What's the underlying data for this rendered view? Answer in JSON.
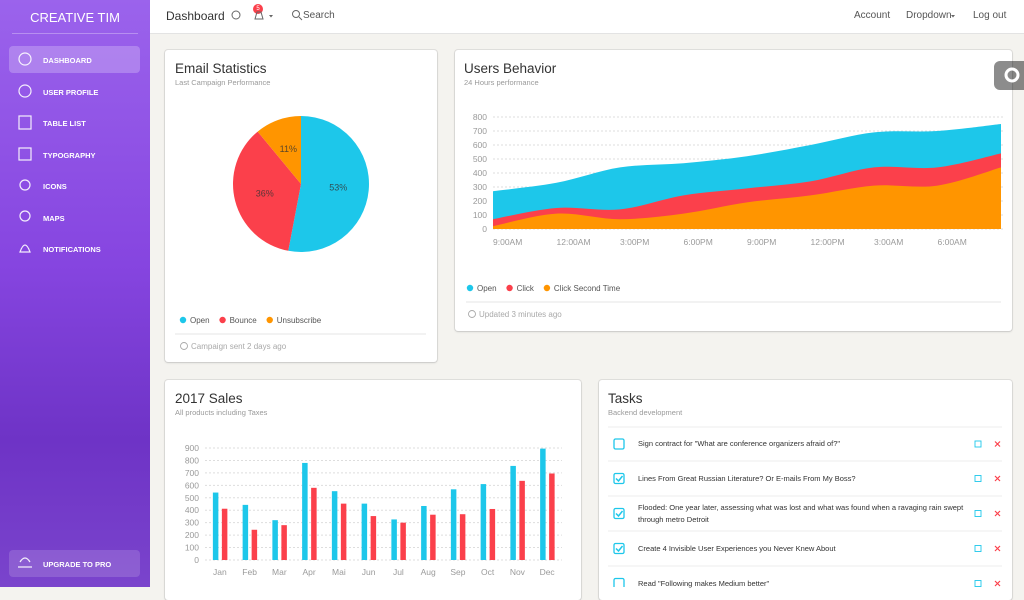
{
  "sidebar": {
    "brand": "CREATIVE TIM",
    "items": [
      "DASHBOARD",
      "USER PROFILE",
      "TABLE LIST",
      "TYPOGRAPHY",
      "ICONS",
      "MAPS",
      "NOTIFICATIONS"
    ],
    "upgrade": "UPGRADE TO PRO"
  },
  "navbar": {
    "title": "Dashboard",
    "badge": "5",
    "search": "Search",
    "links": [
      "Account",
      "Dropdown",
      "Log out"
    ]
  },
  "chart_data": [
    {
      "type": "pie",
      "title": "Email Statistics",
      "subtitle": "Last Campaign Performance",
      "categories": [
        "Open",
        "Bounce",
        "Unsubscribe"
      ],
      "values": [
        53,
        36,
        11
      ],
      "value_labels": [
        "53%",
        "36%",
        "11%"
      ],
      "colors": [
        "#1DC7EA",
        "#FB404B",
        "#FF9500"
      ],
      "footer": "Campaign sent 2 days ago"
    },
    {
      "type": "area",
      "title": "Users Behavior",
      "subtitle": "24 Hours performance",
      "categories": [
        "9:00AM",
        "12:00AM",
        "3:00PM",
        "6:00PM",
        "9:00PM",
        "12:00PM",
        "3:00AM",
        "6:00AM",
        null
      ],
      "series": [
        {
          "name": "Open",
          "color": "#1DC7EA",
          "values": [
            270,
            330,
            440,
            470,
            520,
            600,
            690,
            700,
            750
          ]
        },
        {
          "name": "Click",
          "color": "#FB404B",
          "values": [
            70,
            150,
            140,
            240,
            290,
            340,
            440,
            440,
            540
          ]
        },
        {
          "name": "Click Second Time",
          "color": "#FF9500",
          "values": [
            20,
            110,
            70,
            110,
            190,
            240,
            310,
            310,
            440
          ]
        }
      ],
      "ylim": [
        0,
        800
      ],
      "yticks": [
        0,
        100,
        200,
        300,
        400,
        500,
        600,
        700,
        800
      ],
      "grid": true,
      "footer": "Updated 3 minutes ago"
    },
    {
      "type": "bar",
      "title": "2017 Sales",
      "subtitle": "All products including Taxes",
      "categories": [
        "Jan",
        "Feb",
        "Mar",
        "Apr",
        "Mai",
        "Jun",
        "Jul",
        "Aug",
        "Sep",
        "Oct",
        "Nov",
        "Dec"
      ],
      "series": [
        {
          "color": "#1DC7EA",
          "values": [
            542,
            443,
            320,
            780,
            553,
            453,
            326,
            434,
            568,
            610,
            756,
            895
          ]
        },
        {
          "color": "#FB404B",
          "values": [
            412,
            243,
            280,
            580,
            453,
            353,
            300,
            364,
            368,
            410,
            636,
            695
          ]
        }
      ],
      "ylim": [
        0,
        900
      ],
      "yticks": [
        0,
        100,
        200,
        300,
        400,
        500,
        600,
        700,
        800,
        900
      ],
      "grid": true
    }
  ],
  "tasks": {
    "title": "Tasks",
    "subtitle": "Backend development",
    "items": [
      {
        "text": "Sign contract for \"What are conference organizers afraid of?\"",
        "checked": false
      },
      {
        "text": "Lines From Great Russian Literature? Or E-mails From My Boss?",
        "checked": true
      },
      {
        "text": "Flooded: One year later, assessing what was lost and what was found when a ravaging rain swept through metro Detroit",
        "checked": true
      },
      {
        "text": "Create 4 Invisible User Experiences you Never Knew About",
        "checked": true
      },
      {
        "text": "Read \"Following makes Medium better\"",
        "checked": false
      }
    ]
  }
}
